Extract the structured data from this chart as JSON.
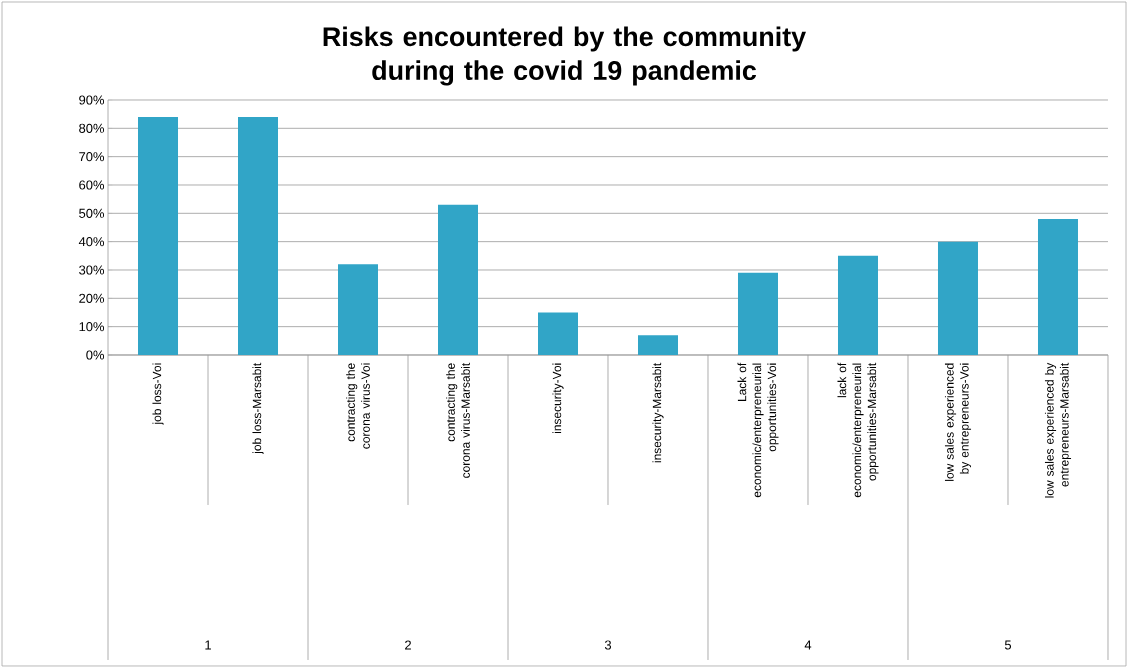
{
  "chart_data": {
    "type": "bar",
    "title": "Risks encountered by the community during the covid 19 pandemic",
    "categories": [
      "job loss-Voi",
      "job loss-Marsabit",
      "contracting the corona virus-Voi",
      "contracting the corona virus-Marsabit",
      "insecurity-Voi",
      "insecurity-Marsabit",
      "Lack of economic/enterpreneurial opportunities-Voi",
      "lack of economic/enterpreneurial opportunities-Marsabit",
      "low sales experienced by entrepreneurs-Voi",
      "low sales experienced by entrepreneurs-Marsabit"
    ],
    "values": [
      84,
      84,
      32,
      53,
      15,
      7,
      29,
      35,
      40,
      48
    ],
    "color": "#31a5c7",
    "ylim": [
      0,
      90
    ],
    "yticks": [
      {
        "value": 0,
        "label": "0%"
      },
      {
        "value": 10,
        "label": "10%"
      },
      {
        "value": 20,
        "label": "20%"
      },
      {
        "value": 30,
        "label": "30%"
      },
      {
        "value": 40,
        "label": "40%"
      },
      {
        "value": 50,
        "label": "50%"
      },
      {
        "value": 60,
        "label": "60%"
      },
      {
        "value": 70,
        "label": "70%"
      },
      {
        "value": 80,
        "label": "80%"
      },
      {
        "value": 90,
        "label": "90%"
      }
    ],
    "grid": "y",
    "annotations": [
      "1",
      "2",
      "3",
      "4",
      "5"
    ]
  }
}
